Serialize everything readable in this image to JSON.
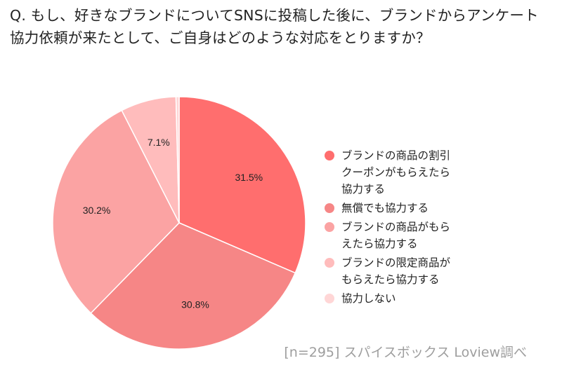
{
  "title": "Q. もし、好きなブランドについてSNSに投稿した後に、ブランドからアンケート\n協力依頼が来たとして、ご自身はどのような対応をとりますか？",
  "source": "[n=295]  スパイスボックス Loview調べ",
  "chart_data": {
    "type": "pie",
    "title": "Q. もし、好きなブランドについてSNSに投稿した後に、ブランドからアンケート協力依頼が来たとして、ご自身はどのような対応をとりますか？",
    "legend_position": "right",
    "slices": [
      {
        "label": "ブランドの商品の割引\nクーポンがもらえたら\n協力する",
        "value": 31.5,
        "display": "31.5%",
        "color": "#ff6e6e"
      },
      {
        "label": "無償でも協力する",
        "value": 30.8,
        "display": "30.8%",
        "color": "#f68686"
      },
      {
        "label": "ブランドの商品がもら\nえたら協力する",
        "value": 30.2,
        "display": "30.2%",
        "color": "#fba3a3"
      },
      {
        "label": "ブランドの限定商品が\nもらえたら協力する",
        "value": 7.1,
        "display": "7.1%",
        "color": "#ffbcbc"
      },
      {
        "label": "協力しない",
        "value": 0.4,
        "display": "",
        "color": "#ffd6d6"
      }
    ]
  }
}
